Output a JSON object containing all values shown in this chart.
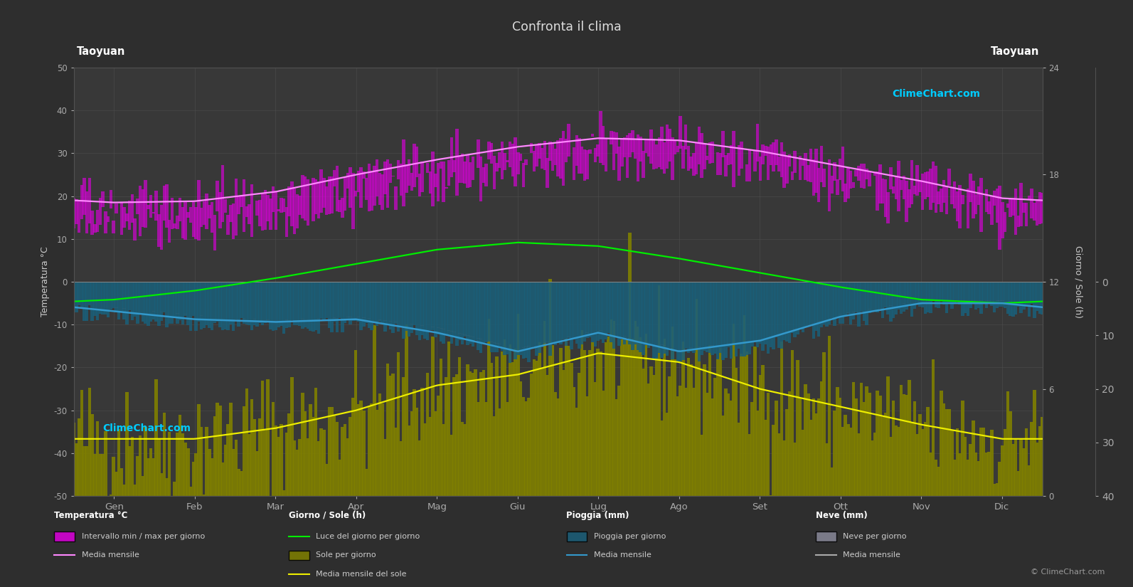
{
  "title": "Confronta il clima",
  "location_left": "Taoyuan",
  "location_right": "Taoyuan",
  "months": [
    "Gen",
    "Feb",
    "Mar",
    "Apr",
    "Mag",
    "Giu",
    "Lug",
    "Ago",
    "Set",
    "Ott",
    "Nov",
    "Dic"
  ],
  "background_color": "#2e2e2e",
  "plot_bg_color": "#383838",
  "grid_color": "#505050",
  "temp_ylim": [
    -50,
    50
  ],
  "daylight_hours": [
    11.0,
    11.5,
    12.2,
    13.0,
    13.8,
    14.2,
    14.0,
    13.3,
    12.5,
    11.7,
    11.0,
    10.8
  ],
  "sunshine_hours": [
    3.2,
    3.2,
    3.8,
    4.8,
    6.2,
    6.8,
    8.0,
    7.5,
    6.0,
    5.0,
    4.0,
    3.2
  ],
  "temp_monthly_mean": [
    15.4,
    15.5,
    17.2,
    21.0,
    24.5,
    27.2,
    29.5,
    29.2,
    27.0,
    24.0,
    21.0,
    17.0
  ],
  "temp_daily_max_mean": [
    18.5,
    18.8,
    21.0,
    25.0,
    28.5,
    31.5,
    33.5,
    33.0,
    30.5,
    27.0,
    23.5,
    19.5
  ],
  "temp_daily_min_mean": [
    12.5,
    12.5,
    14.5,
    18.0,
    22.0,
    25.5,
    27.5,
    27.5,
    25.0,
    21.5,
    18.5,
    14.5
  ],
  "rain_daily_mm": [
    4.8,
    6.2,
    7.2,
    6.5,
    8.5,
    12.5,
    9.0,
    12.5,
    11.0,
    6.0,
    3.5,
    3.5
  ],
  "rain_monthly_mean_line": [
    5.5,
    7.0,
    7.5,
    7.0,
    9.5,
    13.0,
    9.5,
    13.0,
    11.0,
    6.5,
    4.0,
    4.0
  ],
  "num_days": 365,
  "color_temp_fill": "#dd00dd",
  "color_sun_fill_top": "#808000",
  "color_rain_fill": "#1a5f7a",
  "color_snow_fill": "#607080",
  "color_green_line": "#00ee00",
  "color_pink_line": "#ff88ff",
  "color_yellow_line": "#eeee00",
  "color_blue_line": "#3399cc",
  "color_title": "#dddddd",
  "color_text": "#cccccc",
  "color_axis": "#aaaaaa",
  "watermark_cyan": "#00ccff",
  "watermark_purple": "#cc44cc"
}
